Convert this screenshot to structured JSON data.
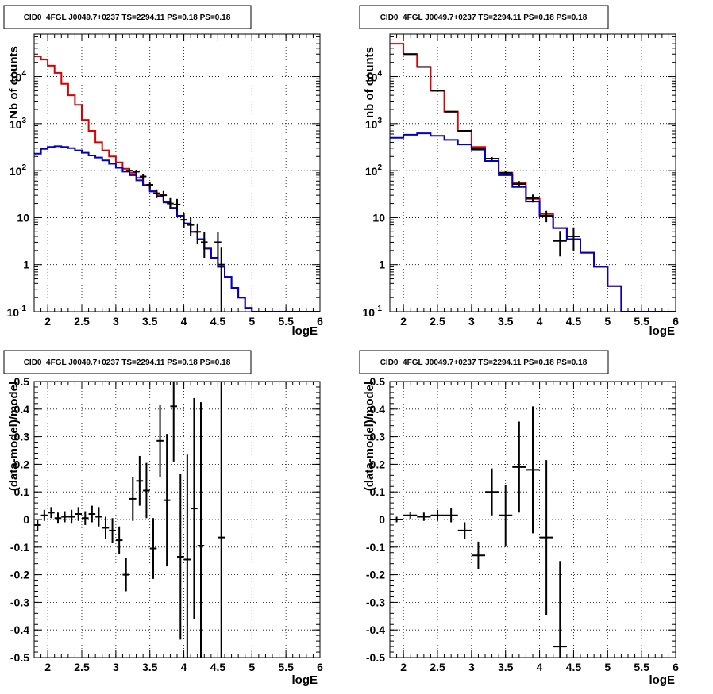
{
  "pad_title": "CID0_4FGL J0049.7+0237 TS=2294.11 PS=0.18 PS=0.18",
  "colors": {
    "model": "#dd0000",
    "background": "#0000cc",
    "data": "#000000",
    "grid": "#000000"
  },
  "chart_data": [
    {
      "type": "line",
      "title": "CID0_4FGL J0049.7+0237 TS=2294.11 PS=0.18 PS=0.18",
      "xlabel": "logE",
      "ylabel": "Nb of counts",
      "xlim": [
        1.8,
        6
      ],
      "ylim": [
        0.1,
        80000
      ],
      "yscale": "log",
      "grid": true,
      "x_ticks": [
        "2",
        "2.5",
        "3",
        "3.5",
        "4",
        "4.5",
        "5",
        "5.5",
        "6"
      ],
      "y_ticks": [
        "10^-1",
        "1",
        "10",
        "10^2",
        "10^3",
        "10^4"
      ],
      "bin_edges": [
        1.8,
        1.9,
        2.0,
        2.1,
        2.2,
        2.3,
        2.4,
        2.5,
        2.6,
        2.7,
        2.8,
        2.9,
        3.0,
        3.1,
        3.2,
        3.3,
        3.4,
        3.5,
        3.6,
        3.7,
        3.8,
        3.9,
        4.0,
        4.1,
        4.2,
        4.3,
        4.4,
        4.5,
        4.6,
        4.7,
        4.8,
        4.9,
        5.0,
        5.1,
        5.2,
        5.3,
        5.4,
        5.5,
        5.6,
        5.7,
        5.8,
        5.9,
        6.0
      ],
      "series": [
        {
          "role": "model",
          "values": [
            27000,
            23000,
            17000,
            12000,
            7000,
            4000,
            2500,
            1200,
            700,
            400,
            270,
            200,
            150,
            110,
            90,
            70,
            50,
            38,
            30,
            22,
            16,
            11,
            7.5,
            5,
            3.5,
            2.2,
            1.4,
            0.9,
            0.55,
            0.32,
            0.2,
            0.12,
            0.1,
            0.1,
            0.1,
            0.1,
            0.1,
            0.1,
            0.1,
            0.1,
            0.1,
            0.1
          ]
        },
        {
          "role": "background",
          "values": [
            230,
            290,
            320,
            330,
            320,
            300,
            270,
            240,
            210,
            190,
            165,
            140,
            115,
            95,
            80,
            62,
            48,
            36,
            28,
            21,
            16,
            11,
            7.5,
            5,
            3.5,
            2.2,
            1.4,
            0.9,
            0.55,
            0.32,
            0.2,
            0.12,
            0.1,
            0.1,
            0.1,
            0.1,
            0.1,
            0.1,
            0.1,
            0.1,
            0.1,
            0.1
          ]
        }
      ],
      "data_points": [
        {
          "x": 3.2,
          "y": 100,
          "ylo": 90,
          "yhi": 110
        },
        {
          "x": 3.3,
          "y": 95,
          "ylo": 85,
          "yhi": 105
        },
        {
          "x": 3.4,
          "y": 75,
          "ylo": 65,
          "yhi": 85
        },
        {
          "x": 3.5,
          "y": 50,
          "ylo": 42,
          "yhi": 58
        },
        {
          "x": 3.6,
          "y": 33,
          "ylo": 26,
          "yhi": 40
        },
        {
          "x": 3.7,
          "y": 30,
          "ylo": 23,
          "yhi": 37
        },
        {
          "x": 3.8,
          "y": 20,
          "ylo": 15,
          "yhi": 26
        },
        {
          "x": 3.9,
          "y": 19,
          "ylo": 14,
          "yhi": 25
        },
        {
          "x": 4.0,
          "y": 9,
          "ylo": 6,
          "yhi": 12.5
        },
        {
          "x": 4.1,
          "y": 7,
          "ylo": 4,
          "yhi": 10
        },
        {
          "x": 4.2,
          "y": 5,
          "ylo": 2.7,
          "yhi": 7.5
        },
        {
          "x": 4.3,
          "y": 3,
          "ylo": 1.4,
          "yhi": 5
        },
        {
          "x": 4.5,
          "y": 3,
          "ylo": 1.4,
          "yhi": 5
        },
        {
          "x": 4.55,
          "y": 1,
          "ylo": 0.1,
          "yhi": 2.3
        }
      ]
    },
    {
      "type": "line",
      "title": "CID0_4FGL J0049.7+0237 TS=2294.11 PS=0.18 PS=0.18",
      "xlabel": "logE",
      "ylabel": "nb of counts",
      "xlim": [
        1.8,
        6
      ],
      "ylim": [
        0.1,
        80000
      ],
      "yscale": "log",
      "grid": true,
      "x_ticks": [
        "2",
        "2.5",
        "3",
        "3.5",
        "4",
        "4.5",
        "5",
        "5.5",
        "6"
      ],
      "y_ticks": [
        "10^-1",
        "1",
        "10",
        "10^2",
        "10^3",
        "10^4"
      ],
      "bin_edges": [
        1.8,
        2.0,
        2.2,
        2.4,
        2.6,
        2.8,
        3.0,
        3.2,
        3.4,
        3.6,
        3.8,
        4.0,
        4.2,
        4.4,
        4.6,
        4.8,
        5.0,
        5.2,
        5.4,
        5.6,
        5.8,
        6.0
      ],
      "series": [
        {
          "role": "model",
          "values": [
            50000,
            30000,
            16000,
            5000,
            1800,
            700,
            320,
            180,
            90,
            55,
            25,
            12,
            6,
            3.5,
            1.8,
            0.9,
            0.35,
            0.1,
            0.1,
            0.1,
            0.1
          ]
        },
        {
          "role": "background",
          "values": [
            500,
            580,
            620,
            550,
            450,
            360,
            280,
            160,
            80,
            45,
            22,
            11,
            6,
            3.5,
            1.8,
            0.9,
            0.35,
            0.1,
            0.1,
            0.1,
            0.1
          ]
        }
      ],
      "data_points": [
        {
          "x": 2.1,
          "y": 30000,
          "ylo": 29000,
          "yhi": 31000
        },
        {
          "x": 2.3,
          "y": 16000,
          "ylo": 15500,
          "yhi": 16500
        },
        {
          "x": 2.5,
          "y": 5000,
          "ylo": 4800,
          "yhi": 5200
        },
        {
          "x": 2.7,
          "y": 1800,
          "ylo": 1750,
          "yhi": 1850
        },
        {
          "x": 2.9,
          "y": 700,
          "ylo": 680,
          "yhi": 720
        },
        {
          "x": 3.1,
          "y": 290,
          "ylo": 270,
          "yhi": 310
        },
        {
          "x": 3.3,
          "y": 180,
          "ylo": 165,
          "yhi": 195
        },
        {
          "x": 3.5,
          "y": 90,
          "ylo": 80,
          "yhi": 100
        },
        {
          "x": 3.7,
          "y": 52,
          "ylo": 45,
          "yhi": 60
        },
        {
          "x": 3.9,
          "y": 26,
          "ylo": 21,
          "yhi": 31
        },
        {
          "x": 4.1,
          "y": 11,
          "ylo": 8,
          "yhi": 14
        },
        {
          "x": 4.3,
          "y": 3.2,
          "ylo": 1.5,
          "yhi": 5.2
        },
        {
          "x": 4.5,
          "y": 4,
          "ylo": 2,
          "yhi": 6.2
        }
      ]
    },
    {
      "type": "scatter",
      "title": "CID0_4FGL J0049.7+0237 TS=2294.11 PS=0.18 PS=0.18",
      "xlabel": "logE",
      "ylabel": "(data-model)/model",
      "xlim": [
        1.8,
        6
      ],
      "ylim": [
        -0.5,
        0.5
      ],
      "grid": true,
      "x_ticks": [
        "2",
        "2.5",
        "3",
        "3.5",
        "4",
        "4.5",
        "5",
        "5.5",
        "6"
      ],
      "y_ticks": [
        "-0.5",
        "-0.4",
        "-0.3",
        "-0.2",
        "-0.1",
        "0",
        "0.1",
        "0.2",
        "0.3",
        "0.4",
        "0.5"
      ],
      "points": [
        {
          "x": 1.85,
          "y": -0.02,
          "err": 0.02
        },
        {
          "x": 1.95,
          "y": 0.015,
          "err": 0.02
        },
        {
          "x": 2.05,
          "y": 0.025,
          "err": 0.02
        },
        {
          "x": 2.15,
          "y": 0.005,
          "err": 0.02
        },
        {
          "x": 2.25,
          "y": 0.01,
          "err": 0.02
        },
        {
          "x": 2.35,
          "y": 0.01,
          "err": 0.025
        },
        {
          "x": 2.45,
          "y": 0.02,
          "err": 0.025
        },
        {
          "x": 2.55,
          "y": 0.005,
          "err": 0.025
        },
        {
          "x": 2.65,
          "y": 0.02,
          "err": 0.03
        },
        {
          "x": 2.75,
          "y": 0.01,
          "err": 0.035
        },
        {
          "x": 2.85,
          "y": -0.03,
          "err": 0.04
        },
        {
          "x": 2.95,
          "y": -0.04,
          "err": 0.045
        },
        {
          "x": 3.05,
          "y": -0.075,
          "err": 0.05
        },
        {
          "x": 3.15,
          "y": -0.2,
          "err": 0.06
        },
        {
          "x": 3.25,
          "y": 0.075,
          "err": 0.08
        },
        {
          "x": 3.35,
          "y": 0.14,
          "err": 0.09
        },
        {
          "x": 3.45,
          "y": 0.105,
          "err": 0.1
        },
        {
          "x": 3.55,
          "y": -0.105,
          "err": 0.11
        },
        {
          "x": 3.65,
          "y": 0.285,
          "err": 0.13
        },
        {
          "x": 3.75,
          "y": 0.07,
          "err": 0.24
        },
        {
          "x": 3.85,
          "y": 0.41,
          "err": 0.2
        },
        {
          "x": 3.95,
          "y": -0.135,
          "err": 0.3
        },
        {
          "x": 4.05,
          "y": -0.145,
          "err": 0.38
        },
        {
          "x": 4.15,
          "y": 0.04,
          "err": 0.4
        },
        {
          "x": 4.25,
          "y": -0.095,
          "err": 0.52
        },
        {
          "x": 4.55,
          "y": -0.065,
          "err": 0.9
        }
      ]
    },
    {
      "type": "scatter",
      "title": "CID0_4FGL J0049.7+0237 TS=2294.11 PS=0.18 PS=0.18",
      "xlabel": "logE",
      "ylabel": "(data-model)/model",
      "xlim": [
        1.8,
        6
      ],
      "ylim": [
        -0.5,
        0.5
      ],
      "grid": true,
      "x_ticks": [
        "2",
        "2.5",
        "3",
        "3.5",
        "4",
        "4.5",
        "5",
        "5.5",
        "6"
      ],
      "y_ticks": [
        "-0.5",
        "-0.4",
        "-0.3",
        "-0.2",
        "-0.1",
        "0",
        "0.1",
        "0.2",
        "0.3",
        "0.4",
        "0.5"
      ],
      "points": [
        {
          "x": 1.9,
          "y": 0.0,
          "err": 0.01
        },
        {
          "x": 2.1,
          "y": 0.015,
          "err": 0.012
        },
        {
          "x": 2.3,
          "y": 0.01,
          "err": 0.015
        },
        {
          "x": 2.5,
          "y": 0.015,
          "err": 0.02
        },
        {
          "x": 2.7,
          "y": 0.015,
          "err": 0.025
        },
        {
          "x": 2.9,
          "y": -0.04,
          "err": 0.03
        },
        {
          "x": 3.1,
          "y": -0.13,
          "err": 0.05
        },
        {
          "x": 3.3,
          "y": 0.1,
          "err": 0.085
        },
        {
          "x": 3.5,
          "y": 0.015,
          "err": 0.11
        },
        {
          "x": 3.7,
          "y": 0.19,
          "err": 0.165
        },
        {
          "x": 3.9,
          "y": 0.18,
          "err": 0.23
        },
        {
          "x": 4.1,
          "y": -0.065,
          "err": 0.28
        },
        {
          "x": 4.3,
          "y": -0.46,
          "err": 0.31
        }
      ]
    }
  ]
}
